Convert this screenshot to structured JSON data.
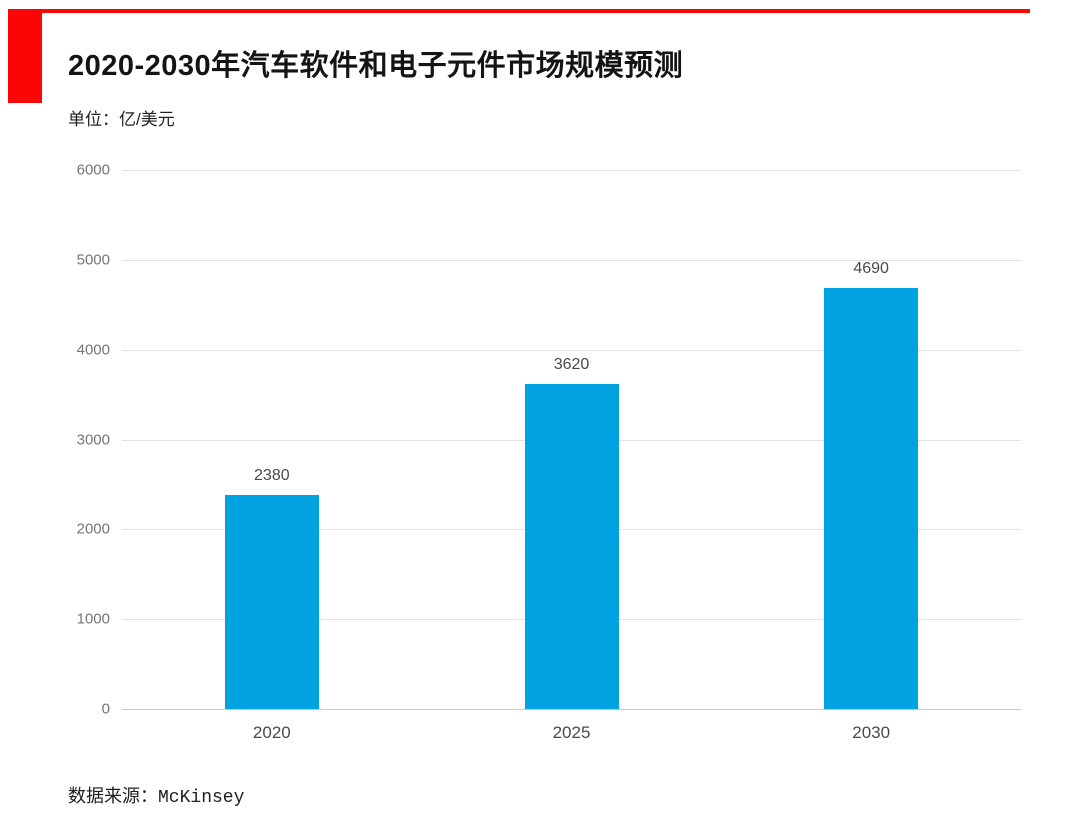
{
  "page": {
    "title": "2020-2030年汽车软件和电子元件市场规模预测",
    "unit_label": "单位：亿/美元",
    "source_prefix": "数据来源：",
    "source_name": "McKinsey",
    "accent_color": "#fb0505",
    "background_color": "#ffffff"
  },
  "chart_data": {
    "type": "bar",
    "title": "2020-2030年汽车软件和电子元件市场规模预测",
    "categories": [
      "2020",
      "2025",
      "2030"
    ],
    "values": [
      2380,
      3620,
      4690
    ],
    "value_labels": [
      "2380",
      "3620",
      "4690"
    ],
    "xlabel": "",
    "ylabel": "单位：亿/美元",
    "ylim": [
      0,
      6000
    ],
    "yticks": [
      0,
      1000,
      2000,
      3000,
      4000,
      5000,
      6000
    ],
    "grid": true,
    "legend": "none",
    "bar_color": "#00a3df",
    "gridline_color": "#e2e2e2",
    "source": "数据来源：McKinsey"
  }
}
